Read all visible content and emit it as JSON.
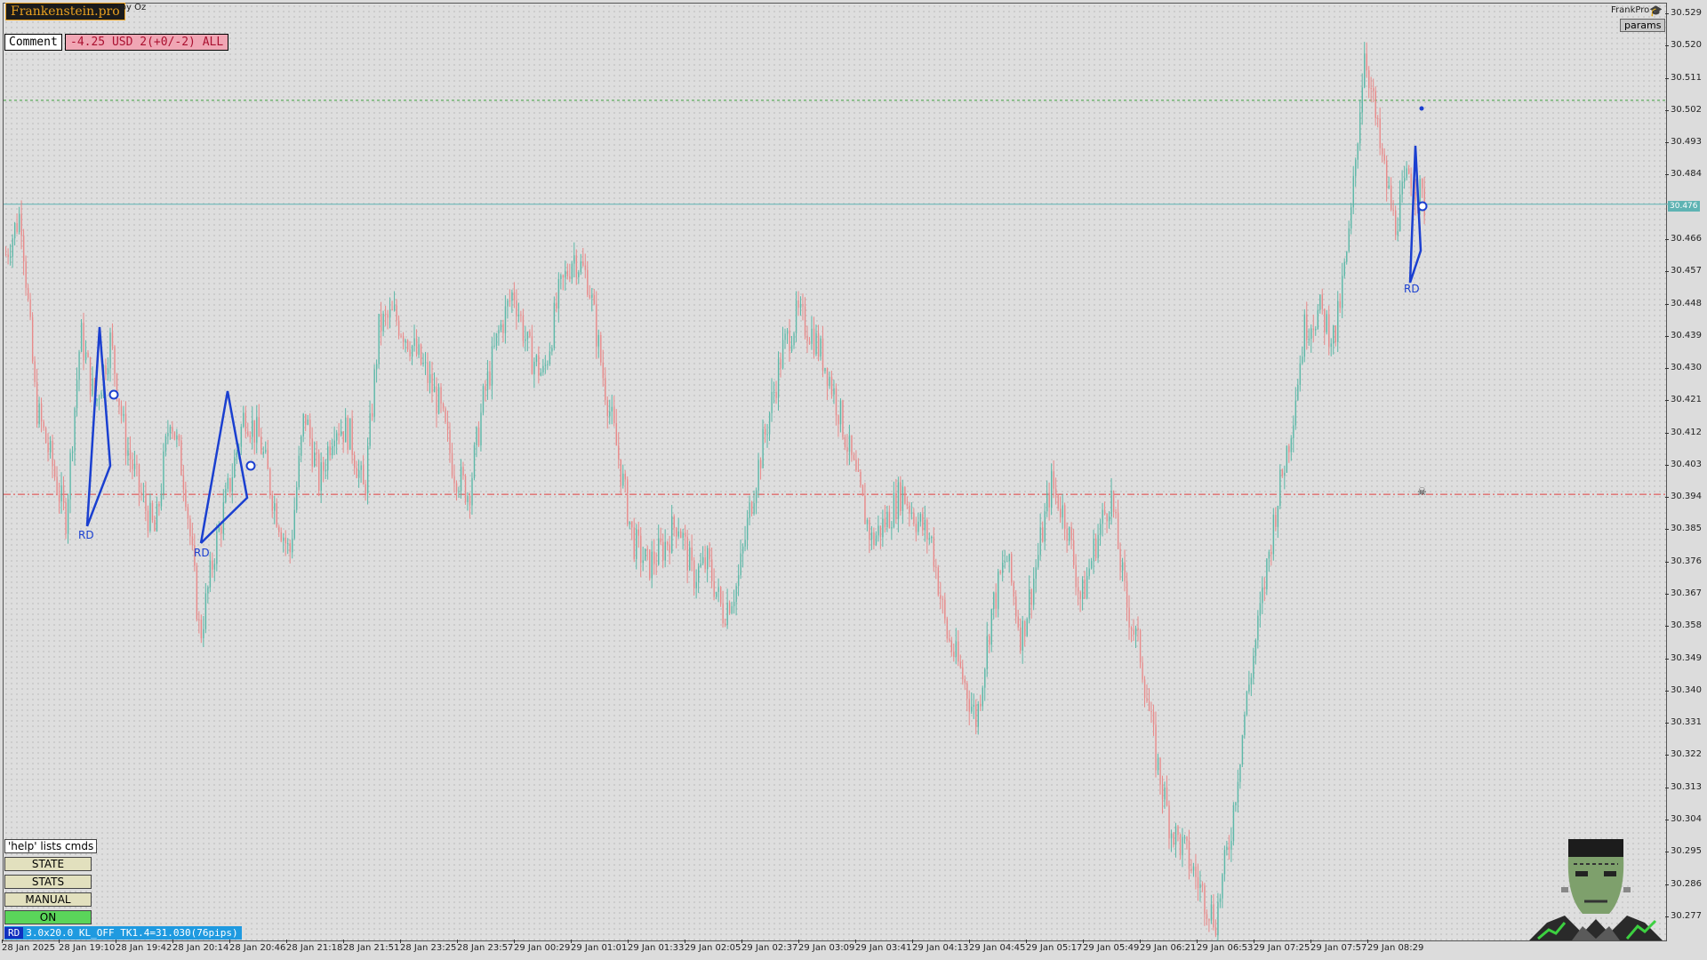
{
  "header": {
    "brand": "Frankenstein.pro",
    "symbol": "roy Oz",
    "comment_button": "Comment",
    "pl_summary": "-4.25 USD 2(+0/-2) ALL",
    "ea_name": "FrankPro",
    "params_button": "params"
  },
  "current_price": "30.476",
  "price_axis": [
    "30.529",
    "30.520",
    "30.511",
    "30.502",
    "30.493",
    "30.484",
    "30.466",
    "30.457",
    "30.448",
    "30.439",
    "30.430",
    "30.421",
    "30.412",
    "30.403",
    "30.394",
    "30.385",
    "30.376",
    "30.367",
    "30.358",
    "30.349",
    "30.340",
    "30.331",
    "30.322",
    "30.313",
    "30.304",
    "30.295",
    "30.286",
    "30.277"
  ],
  "time_axis": [
    "28 Jan 2025",
    "28 Jan 19:10",
    "28 Jan 19:42",
    "28 Jan 20:14",
    "28 Jan 20:46",
    "28 Jan 21:18",
    "28 Jan 21:51",
    "28 Jan 23:25",
    "28 Jan 23:57",
    "29 Jan 00:29",
    "29 Jan 01:01",
    "29 Jan 01:33",
    "29 Jan 02:05",
    "29 Jan 02:37",
    "29 Jan 03:09",
    "29 Jan 03:41",
    "29 Jan 04:13",
    "29 Jan 04:45",
    "29 Jan 05:17",
    "29 Jan 05:49",
    "29 Jan 06:21",
    "29 Jan 06:53",
    "29 Jan 07:25",
    "29 Jan 07:57",
    "29 Jan 08:29"
  ],
  "pattern_labels": [
    "RD",
    "RD",
    "RD"
  ],
  "panel": {
    "help": "'help' lists cmds",
    "state": "STATE",
    "stats": "STATS",
    "manual": "MANUAL",
    "on": "ON"
  },
  "status_bar": {
    "tag": "RD",
    "text": "3.0x20.0 KL_OFF TK1.4=31.030(76pips)"
  },
  "colors": {
    "bull": "#5cb8a8",
    "bear": "#e88a8a",
    "pattern": "#1a3fd0",
    "level_red": "#e04040",
    "level_green": "#40a040",
    "current_line": "#5fb3b3"
  },
  "chart_data": {
    "type": "candlestick",
    "ylim": [
      30.27,
      30.532
    ],
    "levels": {
      "current": 30.476,
      "upper_dotted": 30.505,
      "red_dashdot": 30.395
    },
    "close_path": [
      [
        0,
        30.462
      ],
      [
        2,
        30.474
      ],
      [
        4,
        30.42
      ],
      [
        6,
        30.405
      ],
      [
        8,
        30.388
      ],
      [
        10,
        30.44
      ],
      [
        12,
        30.42
      ],
      [
        14,
        30.438
      ],
      [
        16,
        30.41
      ],
      [
        18,
        30.395
      ],
      [
        20,
        30.384
      ],
      [
        22,
        30.418
      ],
      [
        24,
        30.398
      ],
      [
        26,
        30.355
      ],
      [
        28,
        30.38
      ],
      [
        30,
        30.398
      ],
      [
        32,
        30.418
      ],
      [
        34,
        30.41
      ],
      [
        36,
        30.392
      ],
      [
        38,
        30.378
      ],
      [
        40,
        30.418
      ],
      [
        42,
        30.398
      ],
      [
        44,
        30.415
      ],
      [
        46,
        30.412
      ],
      [
        48,
        30.395
      ],
      [
        50,
        30.442
      ],
      [
        52,
        30.445
      ],
      [
        54,
        30.438
      ],
      [
        56,
        30.43
      ],
      [
        58,
        30.42
      ],
      [
        60,
        30.402
      ],
      [
        62,
        30.395
      ],
      [
        64,
        30.422
      ],
      [
        66,
        30.44
      ],
      [
        68,
        30.452
      ],
      [
        70,
        30.435
      ],
      [
        72,
        30.428
      ],
      [
        74,
        30.45
      ],
      [
        76,
        30.462
      ],
      [
        78,
        30.455
      ],
      [
        80,
        30.428
      ],
      [
        82,
        30.406
      ],
      [
        84,
        30.382
      ],
      [
        86,
        30.375
      ],
      [
        88,
        30.38
      ],
      [
        90,
        30.388
      ],
      [
        92,
        30.372
      ],
      [
        94,
        30.376
      ],
      [
        96,
        30.362
      ],
      [
        98,
        30.37
      ],
      [
        100,
        30.395
      ],
      [
        102,
        30.415
      ],
      [
        104,
        30.435
      ],
      [
        106,
        30.445
      ],
      [
        108,
        30.44
      ],
      [
        110,
        30.43
      ],
      [
        112,
        30.415
      ],
      [
        114,
        30.398
      ],
      [
        116,
        30.382
      ],
      [
        118,
        30.388
      ],
      [
        120,
        30.396
      ],
      [
        122,
        30.388
      ],
      [
        124,
        30.382
      ],
      [
        126,
        30.356
      ],
      [
        128,
        30.345
      ],
      [
        130,
        30.332
      ],
      [
        132,
        30.362
      ],
      [
        134,
        30.378
      ],
      [
        136,
        30.355
      ],
      [
        138,
        30.375
      ],
      [
        140,
        30.398
      ],
      [
        142,
        30.388
      ],
      [
        144,
        30.365
      ],
      [
        146,
        30.382
      ],
      [
        148,
        30.395
      ],
      [
        150,
        30.365
      ],
      [
        152,
        30.35
      ],
      [
        154,
        30.322
      ],
      [
        156,
        30.302
      ],
      [
        158,
        30.295
      ],
      [
        160,
        30.285
      ],
      [
        162,
        30.276
      ],
      [
        164,
        30.3
      ],
      [
        166,
        30.335
      ],
      [
        168,
        30.362
      ],
      [
        170,
        30.39
      ],
      [
        172,
        30.412
      ],
      [
        174,
        30.442
      ],
      [
        176,
        30.446
      ],
      [
        178,
        30.438
      ],
      [
        180,
        30.468
      ],
      [
        182,
        30.52
      ],
      [
        184,
        30.492
      ],
      [
        186,
        30.47
      ],
      [
        188,
        30.485
      ],
      [
        190,
        30.476
      ]
    ]
  }
}
